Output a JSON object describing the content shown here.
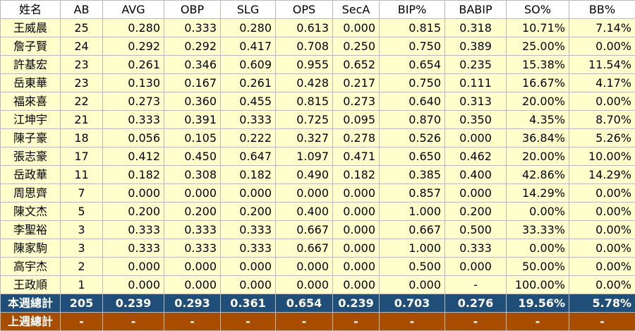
{
  "columns": [
    "姓名",
    "AB",
    "AVG",
    "OBP",
    "SLG",
    "OPS",
    "SecA",
    "BIP%",
    "BABIP",
    "SO%",
    "BB%"
  ],
  "players": [
    {
      "name": "王威晨",
      "ab": "25",
      "avg": "0.280",
      "obp": "0.333",
      "slg": "0.280",
      "ops": "0.613",
      "seca": "0.000",
      "bip": "0.815",
      "babip": "0.318",
      "so": "10.71%",
      "bb": "7.14%"
    },
    {
      "name": "詹子賢",
      "ab": "24",
      "avg": "0.292",
      "obp": "0.292",
      "slg": "0.417",
      "ops": "0.708",
      "seca": "0.250",
      "bip": "0.750",
      "babip": "0.389",
      "so": "25.00%",
      "bb": "0.00%"
    },
    {
      "name": "許基宏",
      "ab": "23",
      "avg": "0.261",
      "obp": "0.346",
      "slg": "0.609",
      "ops": "0.955",
      "seca": "0.652",
      "bip": "0.654",
      "babip": "0.235",
      "so": "15.38%",
      "bb": "11.54%"
    },
    {
      "name": "岳東華",
      "ab": "23",
      "avg": "0.130",
      "obp": "0.167",
      "slg": "0.261",
      "ops": "0.428",
      "seca": "0.217",
      "bip": "0.750",
      "babip": "0.111",
      "so": "16.67%",
      "bb": "4.17%"
    },
    {
      "name": "福來喜",
      "ab": "22",
      "avg": "0.273",
      "obp": "0.360",
      "slg": "0.455",
      "ops": "0.815",
      "seca": "0.273",
      "bip": "0.640",
      "babip": "0.313",
      "so": "20.00%",
      "bb": "0.00%"
    },
    {
      "name": "江坤宇",
      "ab": "21",
      "avg": "0.333",
      "obp": "0.391",
      "slg": "0.333",
      "ops": "0.725",
      "seca": "0.095",
      "bip": "0.870",
      "babip": "0.350",
      "so": "4.35%",
      "bb": "8.70%"
    },
    {
      "name": "陳子豪",
      "ab": "18",
      "avg": "0.056",
      "obp": "0.105",
      "slg": "0.222",
      "ops": "0.327",
      "seca": "0.278",
      "bip": "0.526",
      "babip": "0.000",
      "so": "36.84%",
      "bb": "5.26%"
    },
    {
      "name": "張志豪",
      "ab": "17",
      "avg": "0.412",
      "obp": "0.450",
      "slg": "0.647",
      "ops": "1.097",
      "seca": "0.471",
      "bip": "0.650",
      "babip": "0.462",
      "so": "20.00%",
      "bb": "10.00%"
    },
    {
      "name": "岳政華",
      "ab": "11",
      "avg": "0.182",
      "obp": "0.308",
      "slg": "0.182",
      "ops": "0.490",
      "seca": "0.182",
      "bip": "0.385",
      "babip": "0.400",
      "so": "42.86%",
      "bb": "14.29%"
    },
    {
      "name": "周思齊",
      "ab": "7",
      "avg": "0.000",
      "obp": "0.000",
      "slg": "0.000",
      "ops": "0.000",
      "seca": "0.000",
      "bip": "0.857",
      "babip": "0.000",
      "so": "14.29%",
      "bb": "0.00%"
    },
    {
      "name": "陳文杰",
      "ab": "5",
      "avg": "0.200",
      "obp": "0.200",
      "slg": "0.200",
      "ops": "0.400",
      "seca": "0.000",
      "bip": "1.000",
      "babip": "0.200",
      "so": "0.00%",
      "bb": "0.00%"
    },
    {
      "name": "李聖裕",
      "ab": "3",
      "avg": "0.333",
      "obp": "0.333",
      "slg": "0.333",
      "ops": "0.667",
      "seca": "0.000",
      "bip": "0.667",
      "babip": "0.500",
      "so": "33.33%",
      "bb": "0.00%"
    },
    {
      "name": "陳家駒",
      "ab": "3",
      "avg": "0.333",
      "obp": "0.333",
      "slg": "0.333",
      "ops": "0.667",
      "seca": "0.000",
      "bip": "1.000",
      "babip": "0.333",
      "so": "0.00%",
      "bb": "0.00%"
    },
    {
      "name": "高宇杰",
      "ab": "2",
      "avg": "0.000",
      "obp": "0.000",
      "slg": "0.000",
      "ops": "0.000",
      "seca": "0.000",
      "bip": "0.500",
      "babip": "0.000",
      "so": "50.00%",
      "bb": "0.00%"
    },
    {
      "name": "王政順",
      "ab": "1",
      "avg": "0.000",
      "obp": "0.000",
      "slg": "0.000",
      "ops": "0.000",
      "seca": "0.000",
      "bip": "0.000",
      "babip": "-",
      "so": "100.00%",
      "bb": "0.00%"
    }
  ],
  "week_total": {
    "name": "本週總計",
    "ab": "205",
    "avg": "0.239",
    "obp": "0.293",
    "slg": "0.361",
    "ops": "0.654",
    "seca": "0.239",
    "bip": "0.703",
    "babip": "0.276",
    "so": "19.56%",
    "bb": "5.78%"
  },
  "prev_week_total": {
    "name": "上週總計",
    "ab": "-",
    "avg": "-",
    "obp": "-",
    "slg": "-",
    "ops": "-",
    "seca": "-",
    "bip": "-",
    "babip": "-",
    "so": "-",
    "bb": "-"
  },
  "colors": {
    "player_row_bg": "#ffffcc",
    "week_total_bg": "#1f4e79",
    "prev_total_bg": "#a84c00",
    "grid": "#b9b9b9"
  }
}
